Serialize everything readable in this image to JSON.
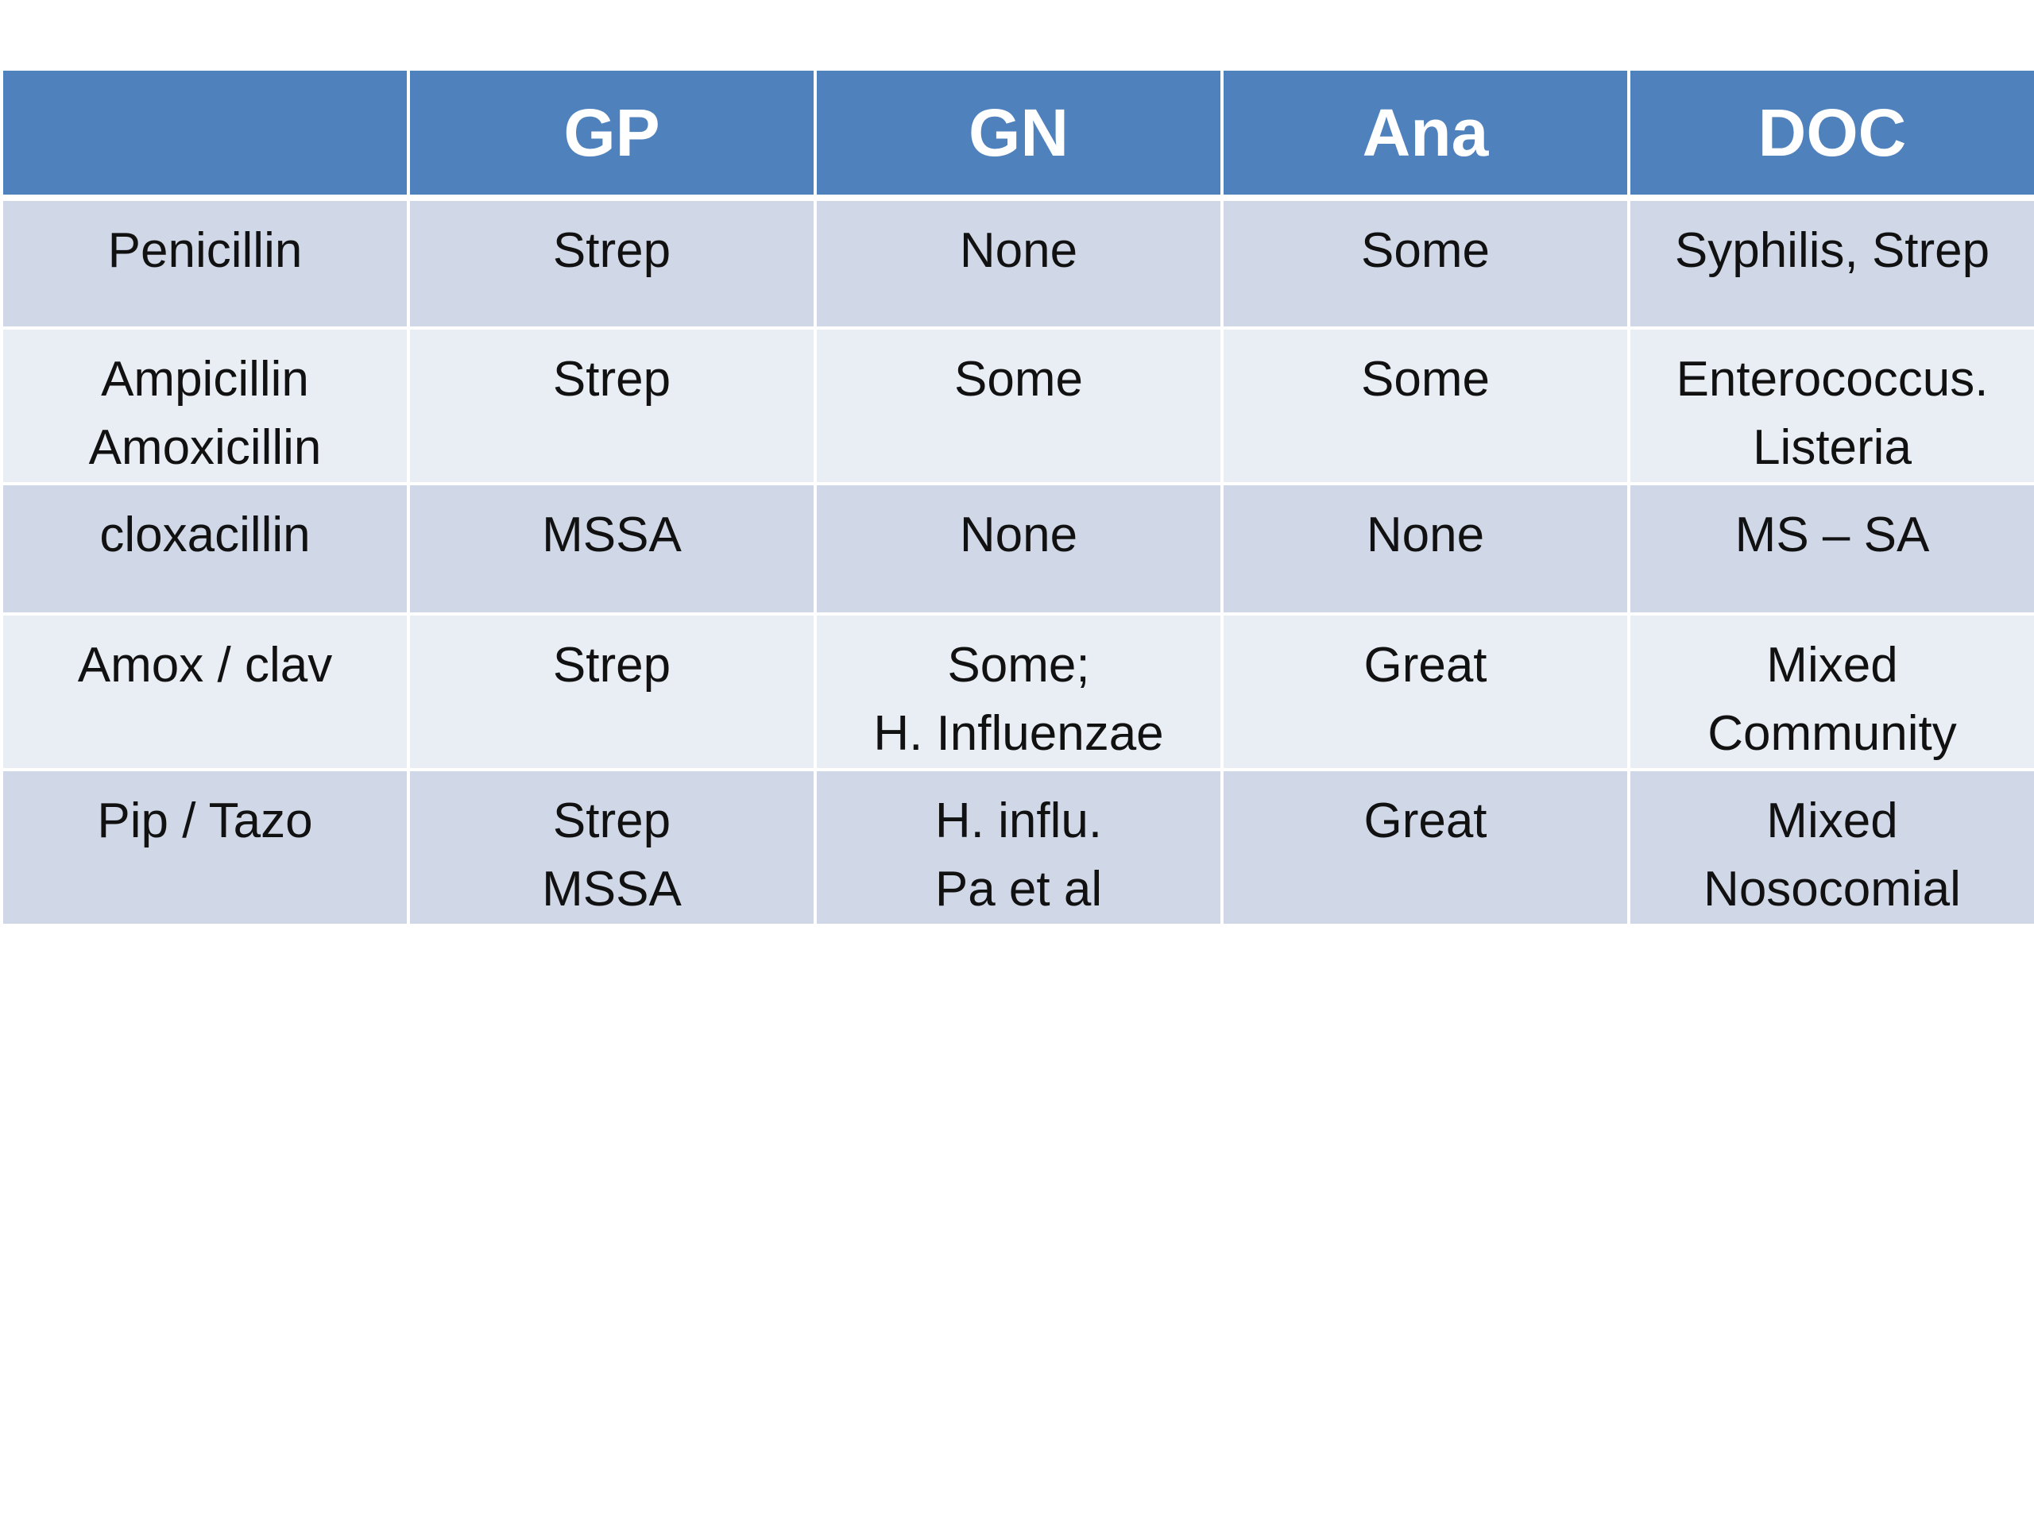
{
  "table": {
    "headers": [
      "",
      "GP",
      "GN",
      "Ana",
      "DOC"
    ],
    "rows": [
      [
        [
          "Penicillin"
        ],
        [
          "Strep"
        ],
        [
          "None"
        ],
        [
          "Some"
        ],
        [
          "Syphilis, Strep"
        ]
      ],
      [
        [
          "Ampicillin",
          "Amoxicillin"
        ],
        [
          "Strep"
        ],
        [
          "Some"
        ],
        [
          "Some"
        ],
        [
          "Enterococcus.",
          "Listeria"
        ]
      ],
      [
        [
          "cloxacillin"
        ],
        [
          "MSSA"
        ],
        [
          "None"
        ],
        [
          "None"
        ],
        [
          "MS – SA"
        ]
      ],
      [
        [
          "Amox / clav"
        ],
        [
          "Strep"
        ],
        [
          "Some;",
          "H. Influenzae"
        ],
        [
          "Great"
        ],
        [
          "Mixed",
          "Community"
        ]
      ],
      [
        [
          "Pip / Tazo"
        ],
        [
          "Strep",
          "MSSA"
        ],
        [
          "H. influ.",
          "Pa et al"
        ],
        [
          "Great"
        ],
        [
          "Mixed",
          "Nosocomial"
        ]
      ]
    ]
  },
  "colors": {
    "header_bg": "#4f81bd",
    "row_odd_bg": "#d0d8e8",
    "row_even_bg": "#e9edf4",
    "header_text": "#ffffff"
  }
}
